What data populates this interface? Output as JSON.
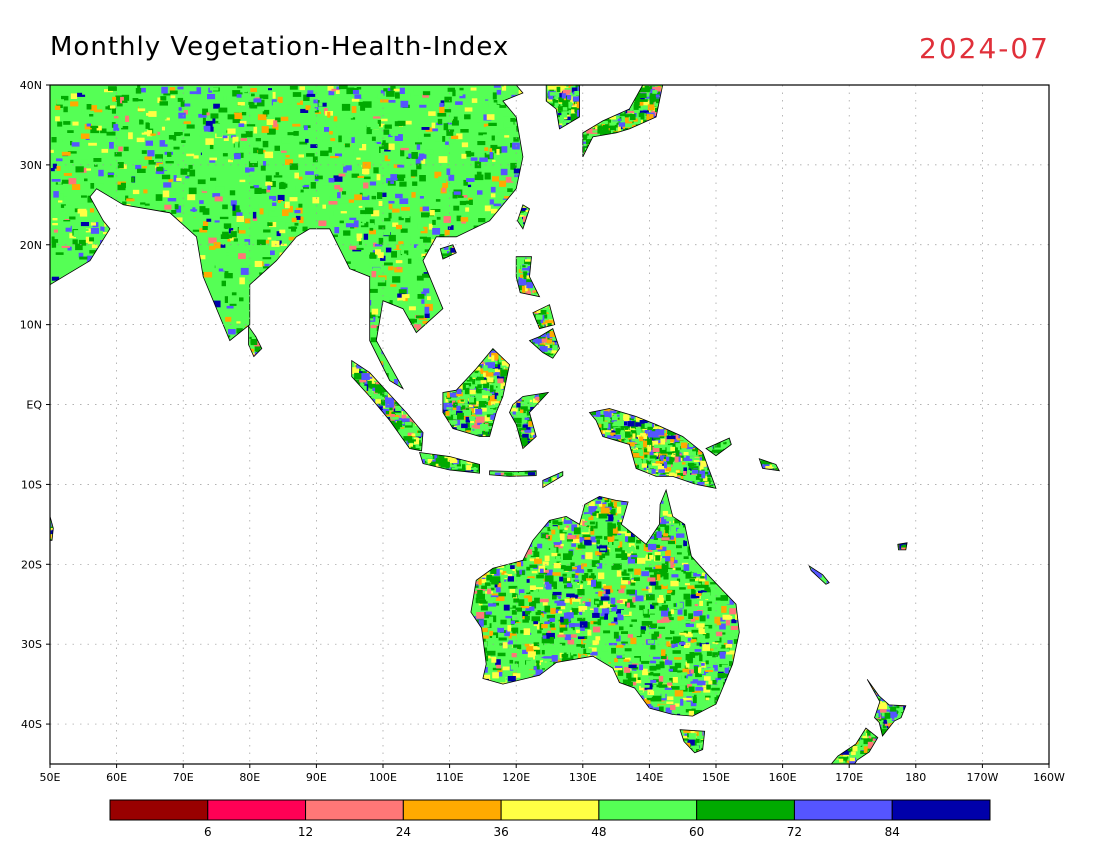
{
  "header": {
    "title": "Monthly Vegetation-Health-Index",
    "date": "2024-07"
  },
  "map": {
    "lon_range": [
      50,
      200
    ],
    "lat_range": [
      -45,
      40
    ],
    "lon_labels": [
      "50E",
      "60E",
      "70E",
      "80E",
      "90E",
      "100E",
      "110E",
      "120E",
      "130E",
      "140E",
      "150E",
      "160E",
      "170E",
      "180",
      "170W",
      "160W"
    ],
    "lat_labels": [
      "40N",
      "30N",
      "20N",
      "10N",
      "EQ",
      "10S",
      "20S",
      "30S",
      "40S"
    ],
    "lat_values": [
      40,
      30,
      20,
      10,
      0,
      -10,
      -20,
      -30,
      -40
    ],
    "gridlines": true
  },
  "colorbar": {
    "colors": [
      "#990000",
      "#ff0055",
      "#ff7777",
      "#ffaa00",
      "#ffff44",
      "#55ff55",
      "#00aa00",
      "#5555ff",
      "#0000aa"
    ],
    "labels": [
      "6",
      "12",
      "24",
      "36",
      "48",
      "60",
      "72",
      "84"
    ]
  }
}
